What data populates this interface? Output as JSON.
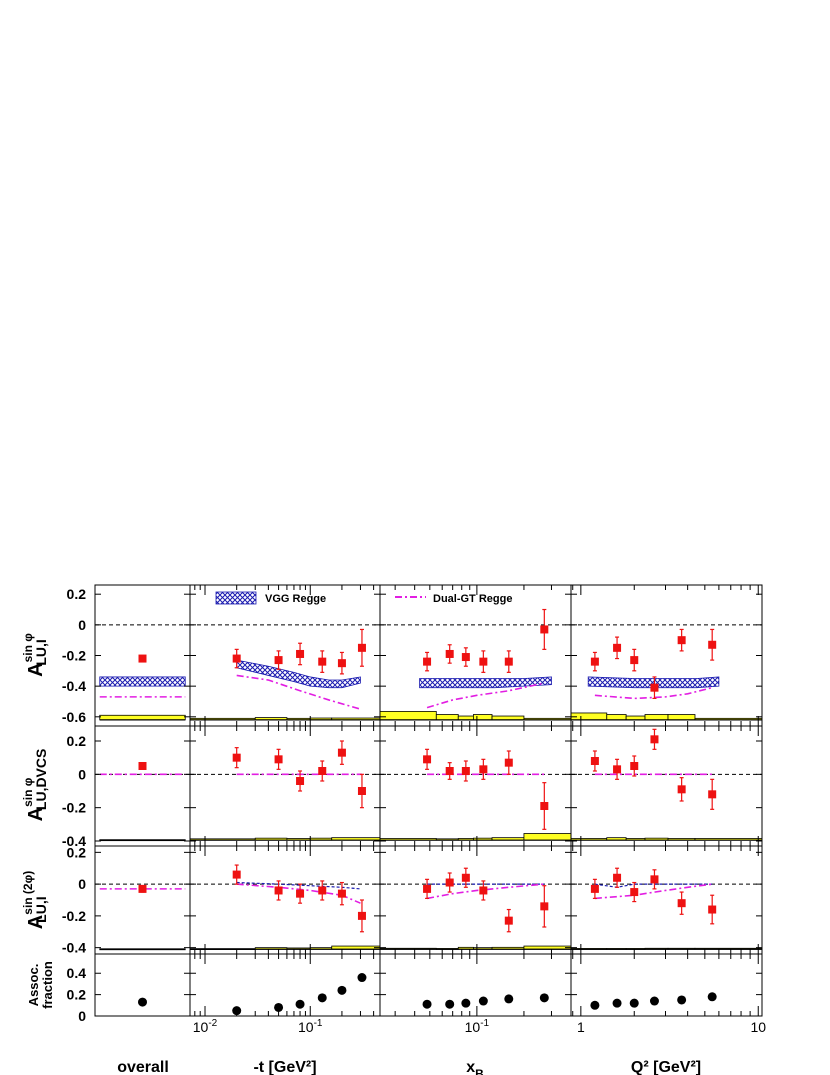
{
  "chart_data": {
    "type": "scatter",
    "columns": [
      {
        "key": "overall",
        "xlabel": "overall",
        "xscale": "none",
        "ticks": []
      },
      {
        "key": "t",
        "xlabel": "-t [GeV²]",
        "xscale": "log",
        "xlim": [
          0.0072,
          0.46
        ],
        "ticks": [
          {
            "v": 0.01,
            "b": "10",
            "e": "-2"
          },
          {
            "v": 0.1,
            "b": "10",
            "e": "-1"
          }
        ]
      },
      {
        "key": "xB",
        "xlabel": "x",
        "xlabel_sub": "B",
        "xscale": "log",
        "xlim": [
          0.024,
          0.4
        ],
        "ticks": [
          {
            "v": 0.1,
            "b": "10",
            "e": "-1"
          }
        ]
      },
      {
        "key": "Q2",
        "xlabel": "Q² [GeV²]",
        "xscale": "log",
        "xlim": [
          0.88,
          10.5
        ],
        "ticks": [
          {
            "v": 1,
            "b": "1",
            "e": ""
          },
          {
            "v": 10,
            "b": "10",
            "e": ""
          }
        ]
      }
    ],
    "rows": [
      {
        "key": "sinphi",
        "ylabel_main": "A",
        "ylabel_sup": "sin φ",
        "ylabel_sub": "LU,I",
        "ylim": [
          -0.66,
          0.26
        ],
        "ticks": [
          "0.2",
          "0",
          "-0.2",
          "-0.4",
          "-0.6"
        ],
        "tick_values": [
          0.2,
          0,
          -0.2,
          -0.4,
          -0.6
        ]
      },
      {
        "key": "dvcs",
        "ylabel_main": "A",
        "ylabel_sup": "sin φ",
        "ylabel_sub": "LU,DVCS",
        "ylim": [
          -0.43,
          0.29
        ],
        "ticks": [
          "0.2",
          "0",
          "-0.2",
          "-0.4"
        ],
        "tick_values": [
          0.2,
          0,
          -0.2,
          -0.4
        ]
      },
      {
        "key": "sin2phi",
        "ylabel_main": "A",
        "ylabel_sup": "sin (2φ)",
        "ylabel_sub": "LU,I",
        "ylim": [
          -0.44,
          0.24
        ],
        "ticks": [
          "0.2",
          "0",
          "-0.2",
          "-0.4"
        ],
        "tick_values": [
          0.2,
          0,
          -0.2,
          -0.4
        ]
      },
      {
        "key": "assoc",
        "ylabel_line1": "Assoc.",
        "ylabel_line2": "fraction",
        "ylim": [
          0,
          0.58
        ],
        "ticks": [
          "0.4",
          "0.2",
          "0"
        ],
        "tick_values": [
          0.4,
          0.2,
          0
        ]
      }
    ],
    "legend": {
      "vgg": "VGG Regge",
      "dual": "Dual-GT Regge"
    },
    "colors": {
      "data": "#ee1111",
      "vgg": "#1b1bb0",
      "dual": "#e21ee2",
      "sys": "#ffff22",
      "points": "#000000"
    },
    "x_points": {
      "overall": [
        0.5
      ],
      "t": [
        0.02,
        0.05,
        0.08,
        0.13,
        0.2,
        0.31
      ],
      "xB": [
        0.048,
        0.067,
        0.085,
        0.11,
        0.16,
        0.27
      ],
      "Q2": [
        1.2,
        1.6,
        2.0,
        2.6,
        3.7,
        5.5
      ]
    },
    "data": {
      "sinphi": {
        "overall": {
          "y": [
            -0.22
          ],
          "err": [
            0.02
          ]
        },
        "t": {
          "y": [
            -0.22,
            -0.23,
            -0.19,
            -0.24,
            -0.25,
            -0.15
          ],
          "err": [
            0.06,
            0.06,
            0.07,
            0.07,
            0.07,
            0.12
          ]
        },
        "xB": {
          "y": [
            -0.24,
            -0.19,
            -0.21,
            -0.24,
            -0.24,
            -0.03
          ],
          "err": [
            0.06,
            0.06,
            0.06,
            0.07,
            0.07,
            0.13
          ]
        },
        "Q2": {
          "y": [
            -0.24,
            -0.15,
            -0.23,
            -0.41,
            -0.1,
            -0.13
          ],
          "err": [
            0.06,
            0.07,
            0.07,
            0.07,
            0.07,
            0.1
          ]
        }
      },
      "dvcs": {
        "overall": {
          "y": [
            0.05
          ],
          "err": [
            0.02
          ]
        },
        "t": {
          "y": [
            0.1,
            0.09,
            -0.04,
            0.02,
            0.13,
            -0.1
          ],
          "err": [
            0.06,
            0.06,
            0.06,
            0.06,
            0.07,
            0.1
          ]
        },
        "xB": {
          "y": [
            0.09,
            0.02,
            0.02,
            0.03,
            0.07,
            -0.19
          ],
          "err": [
            0.06,
            0.05,
            0.06,
            0.06,
            0.07,
            0.14
          ]
        },
        "Q2": {
          "y": [
            0.08,
            0.03,
            0.05,
            0.21,
            -0.09,
            -0.12
          ],
          "err": [
            0.06,
            0.06,
            0.06,
            0.06,
            0.07,
            0.09
          ]
        }
      },
      "sin2phi": {
        "overall": {
          "y": [
            -0.03
          ],
          "err": [
            0.02
          ]
        },
        "t": {
          "y": [
            0.06,
            -0.04,
            -0.06,
            -0.04,
            -0.06,
            -0.2
          ],
          "err": [
            0.06,
            0.06,
            0.06,
            0.06,
            0.07,
            0.1
          ]
        },
        "xB": {
          "y": [
            -0.03,
            0.01,
            0.04,
            -0.04,
            -0.23,
            -0.14
          ],
          "err": [
            0.06,
            0.06,
            0.06,
            0.06,
            0.07,
            0.13
          ]
        },
        "Q2": {
          "y": [
            -0.03,
            0.04,
            -0.05,
            0.03,
            -0.12,
            -0.16
          ],
          "err": [
            0.06,
            0.06,
            0.06,
            0.06,
            0.07,
            0.09
          ]
        }
      },
      "assoc": {
        "overall": {
          "y": [
            0.13
          ]
        },
        "t": {
          "y": [
            0.05,
            0.08,
            0.11,
            0.17,
            0.24,
            0.36
          ]
        },
        "xB": {
          "y": [
            0.11,
            0.11,
            0.12,
            0.14,
            0.16,
            0.17
          ]
        },
        "Q2": {
          "y": [
            0.1,
            0.12,
            0.12,
            0.14,
            0.15,
            0.18
          ]
        }
      }
    },
    "vgg_band": {
      "overall": {
        "x": [
          0.05,
          0.95
        ],
        "lo": [
          -0.4,
          -0.4
        ],
        "hi": [
          -0.34,
          -0.34
        ]
      },
      "t": {
        "x": [
          0.02,
          0.04,
          0.07,
          0.1,
          0.15,
          0.2,
          0.3
        ],
        "lo": [
          -0.28,
          -0.33,
          -0.37,
          -0.4,
          -0.41,
          -0.41,
          -0.38
        ],
        "hi": [
          -0.23,
          -0.27,
          -0.31,
          -0.34,
          -0.36,
          -0.36,
          -0.34
        ]
      },
      "xB": {
        "x": [
          0.043,
          0.08,
          0.13,
          0.2,
          0.3
        ],
        "lo": [
          -0.41,
          -0.41,
          -0.41,
          -0.4,
          -0.39
        ],
        "hi": [
          -0.35,
          -0.35,
          -0.35,
          -0.35,
          -0.34
        ]
      },
      "Q2": {
        "x": [
          1.1,
          2,
          3,
          4.5,
          6
        ],
        "lo": [
          -0.4,
          -0.41,
          -0.41,
          -0.41,
          -0.4
        ],
        "hi": [
          -0.34,
          -0.35,
          -0.35,
          -0.35,
          -0.34
        ]
      }
    },
    "dual_lines": {
      "sinphi": {
        "overall": {
          "x": [
            0.05,
            0.95
          ],
          "y": [
            -0.47,
            -0.47
          ]
        },
        "t": {
          "x": [
            0.02,
            0.04,
            0.08,
            0.15,
            0.3
          ],
          "y": [
            -0.33,
            -0.36,
            -0.43,
            -0.49,
            -0.55
          ]
        },
        "xB": {
          "x": [
            0.048,
            0.07,
            0.1,
            0.16,
            0.27
          ],
          "y": [
            -0.54,
            -0.49,
            -0.46,
            -0.43,
            -0.38
          ]
        },
        "Q2": {
          "x": [
            1.2,
            2,
            3,
            4,
            5.5
          ],
          "y": [
            -0.46,
            -0.48,
            -0.47,
            -0.45,
            -0.41
          ]
        }
      },
      "dvcs": {
        "overall": {
          "x": [
            0.05,
            0.95
          ],
          "y": [
            0.0,
            0.0
          ]
        },
        "t": {
          "x": [
            0.02,
            0.31
          ],
          "y": [
            0.0,
            0.0
          ]
        },
        "xB": {
          "x": [
            0.048,
            0.27
          ],
          "y": [
            0.0,
            0.0
          ]
        },
        "Q2": {
          "x": [
            1.2,
            5.5
          ],
          "y": [
            0.0,
            0.0
          ]
        }
      },
      "sin2phi": {
        "overall": {
          "x": [
            0.05,
            0.95
          ],
          "y": [
            -0.03,
            -0.03
          ]
        },
        "t": {
          "x": [
            0.02,
            0.05,
            0.1,
            0.2,
            0.3
          ],
          "y": [
            0.0,
            -0.02,
            -0.04,
            -0.07,
            -0.12
          ]
        },
        "xB": {
          "x": [
            0.048,
            0.07,
            0.1,
            0.16,
            0.27
          ],
          "y": [
            -0.09,
            -0.06,
            -0.04,
            -0.02,
            0.0
          ]
        },
        "Q2": {
          "x": [
            1.2,
            2,
            3,
            4,
            5.5
          ],
          "y": [
            -0.09,
            -0.07,
            -0.04,
            -0.02,
            0.0
          ]
        }
      }
    },
    "vgg_lines": {
      "sin2phi": {
        "t": {
          "x": [
            0.02,
            0.05,
            0.1,
            0.2,
            0.3
          ],
          "y": [
            0.01,
            0.0,
            -0.01,
            -0.02,
            -0.03
          ]
        },
        "xB": {
          "x": [
            0.048,
            0.1,
            0.27
          ],
          "y": [
            0.0,
            0.0,
            0.0
          ]
        },
        "Q2": {
          "x": [
            1.2,
            1.6,
            2,
            3,
            5.5
          ],
          "y": [
            0.0,
            -0.02,
            0.0,
            0.0,
            0.0
          ]
        }
      }
    },
    "systematics": {
      "sinphi": {
        "overall": {
          "edges": [
            0.05,
            0.95
          ],
          "h": [
            0.03
          ]
        },
        "t": {
          "edges": [
            0.0072,
            0.03,
            0.06,
            0.1,
            0.16,
            0.46
          ],
          "h": [
            0.01,
            0.015,
            0.01,
            0.012,
            0.012
          ]
        },
        "xB": {
          "edges": [
            0.024,
            0.055,
            0.076,
            0.095,
            0.125,
            0.2,
            0.4
          ],
          "h": [
            0.055,
            0.035,
            0.025,
            0.035,
            0.025,
            0.01
          ]
        },
        "Q2": {
          "edges": [
            0.88,
            1.4,
            1.8,
            2.3,
            3.1,
            4.4,
            10.5
          ],
          "h": [
            0.045,
            0.035,
            0.025,
            0.035,
            0.035,
            0.01
          ]
        }
      },
      "dvcs": {
        "overall": {
          "edges": [
            0.05,
            0.95
          ],
          "h": [
            0.003
          ]
        },
        "t": {
          "edges": [
            0.0072,
            0.03,
            0.06,
            0.1,
            0.16,
            0.46
          ],
          "h": [
            0.008,
            0.012,
            0.01,
            0.012,
            0.015
          ]
        },
        "xB": {
          "edges": [
            0.024,
            0.055,
            0.076,
            0.095,
            0.125,
            0.2,
            0.4
          ],
          "h": [
            0.01,
            0.008,
            0.01,
            0.012,
            0.015,
            0.04
          ]
        },
        "Q2": {
          "edges": [
            0.88,
            1.4,
            1.8,
            2.3,
            3.1,
            4.4,
            10.5
          ],
          "h": [
            0.01,
            0.015,
            0.01,
            0.012,
            0.01,
            0.01
          ]
        }
      },
      "sin2phi": {
        "overall": {
          "edges": [
            0.05,
            0.95
          ],
          "h": [
            0.003
          ]
        },
        "t": {
          "edges": [
            0.0072,
            0.03,
            0.06,
            0.1,
            0.16,
            0.46
          ],
          "h": [
            0.004,
            0.01,
            0.008,
            0.01,
            0.02
          ]
        },
        "xB": {
          "edges": [
            0.024,
            0.055,
            0.076,
            0.095,
            0.125,
            0.2,
            0.4
          ],
          "h": [
            0.006,
            0.005,
            0.012,
            0.01,
            0.012,
            0.02
          ]
        },
        "Q2": {
          "edges": [
            0.88,
            1.4,
            1.8,
            2.3,
            3.1,
            4.4,
            10.5
          ],
          "h": [
            0.005,
            0.005,
            0.005,
            0.006,
            0.006,
            0.006
          ]
        }
      }
    }
  }
}
